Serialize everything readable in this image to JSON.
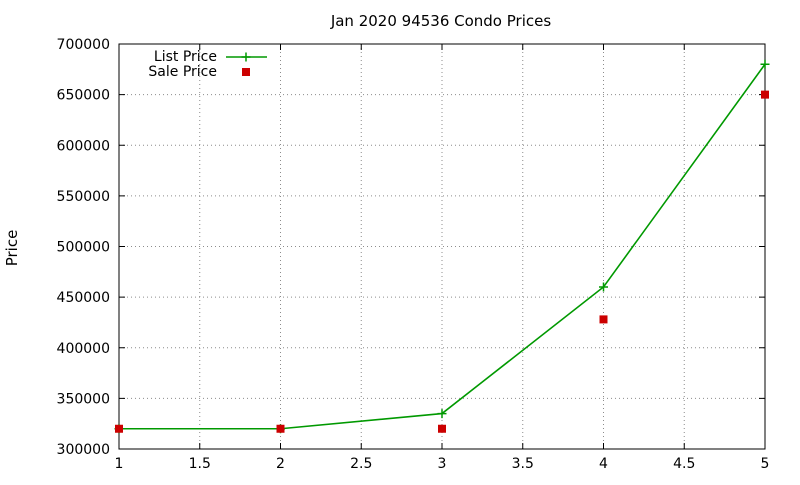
{
  "chart_data": {
    "type": "line",
    "title": "Jan 2020 94536 Condo Prices",
    "xlabel": "",
    "ylabel": "Price",
    "xlim": [
      1,
      5
    ],
    "ylim": [
      300000,
      700000
    ],
    "grid": true,
    "legend_position": "top-left",
    "x_ticks": [
      "1",
      "1.5",
      "2",
      "2.5",
      "3",
      "3.5",
      "4",
      "4.5",
      "5"
    ],
    "y_ticks": [
      "300000",
      "350000",
      "400000",
      "450000",
      "500000",
      "550000",
      "600000",
      "650000",
      "700000"
    ],
    "series": [
      {
        "name": "List Price",
        "style": "linespoints",
        "marker": "plus",
        "color": "#009900",
        "x": [
          1,
          2,
          3,
          4,
          5
        ],
        "y": [
          320000,
          320000,
          335000,
          460000,
          680000
        ]
      },
      {
        "name": "Sale Price",
        "style": "points",
        "marker": "square",
        "color": "#cc0000",
        "x": [
          1,
          2,
          3,
          4,
          5
        ],
        "y": [
          320000,
          320000,
          320000,
          428000,
          650000
        ]
      }
    ]
  }
}
